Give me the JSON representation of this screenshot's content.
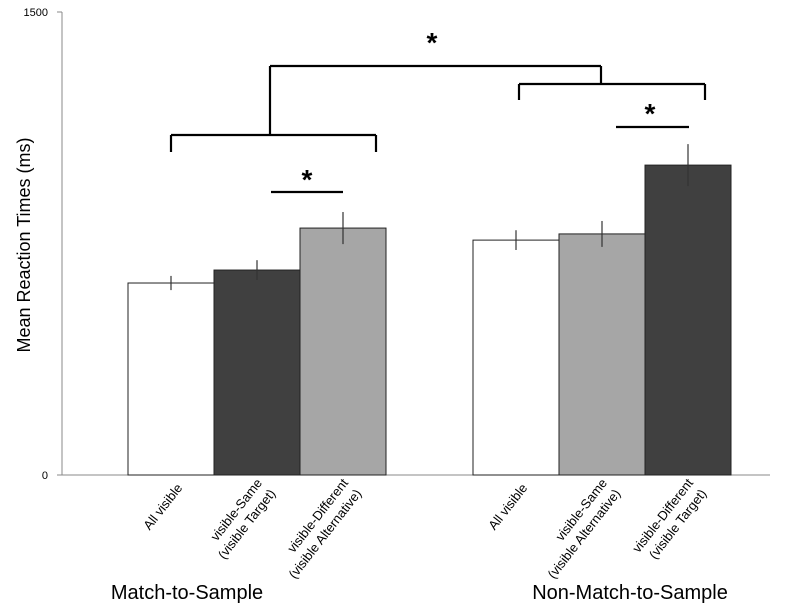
{
  "chart_data": {
    "type": "bar",
    "y_label": "Mean Reaction Times (ms)",
    "groups": [
      "Match-to-Sample",
      "Non-Match-to-Sample"
    ],
    "categories": [
      [
        "All visible"
      ],
      [
        "visible-Same",
        "(visible Target)"
      ],
      [
        "visible-Different",
        "(visible Alternative)"
      ],
      [
        "All visible"
      ],
      [
        "visible-Same",
        "(visible Alternative)"
      ],
      [
        "visible-Different",
        "(visible Target)"
      ]
    ],
    "values": [
      622,
      664,
      800,
      761,
      781,
      1004
    ],
    "errors": [
      23,
      32,
      52,
      32,
      42,
      68
    ],
    "colors": [
      "#ffffff",
      "#404040",
      "#a6a6a6",
      "#ffffff",
      "#a6a6a6",
      "#404040"
    ],
    "ylim": [
      0,
      1500
    ],
    "yticks": [
      0,
      1500
    ],
    "grid": false,
    "annotations": [
      "*",
      "*",
      "*"
    ]
  }
}
